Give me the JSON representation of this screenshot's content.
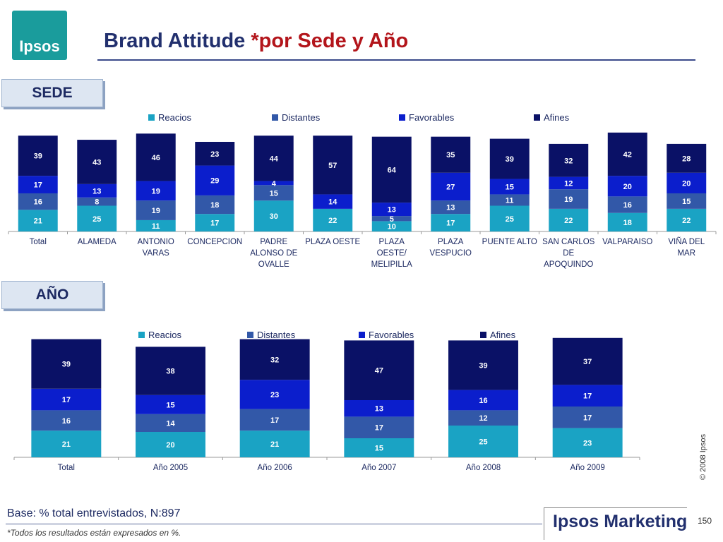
{
  "header": {
    "logo_text": "Ipsos",
    "title_main": "Brand Attitude ",
    "title_suffix": "*por Sede y Año"
  },
  "sections": {
    "sede_label": "SEDE",
    "anio_label": "AÑO"
  },
  "colors": {
    "Reacios": "#1aa3c4",
    "Distantes": "#3258a8",
    "Favorables": "#0b1ecc",
    "Afines": "#0a1166"
  },
  "chart_data": [
    {
      "type": "bar",
      "stacked": true,
      "categories": [
        [
          "Total"
        ],
        [
          "ALAMEDA"
        ],
        [
          "ANTONIO",
          "VARAS"
        ],
        [
          "CONCEPCION"
        ],
        [
          "PADRE",
          "ALONSO DE",
          "OVALLE"
        ],
        [
          "PLAZA OESTE"
        ],
        [
          "PLAZA",
          "OESTE/",
          "MELIPILLA"
        ],
        [
          "PLAZA",
          "VESPUCIO"
        ],
        [
          "PUENTE ALTO"
        ],
        [
          "SAN CARLOS",
          "DE",
          "APOQUINDO"
        ],
        [
          "VALPARAISO"
        ],
        [
          "VIÑA DEL",
          "MAR"
        ]
      ],
      "series": [
        {
          "name": "Reacios",
          "values": [
            21,
            25,
            11,
            17,
            30,
            22,
            10,
            17,
            25,
            22,
            18,
            22
          ]
        },
        {
          "name": "Distantes",
          "values": [
            16,
            8,
            19,
            18,
            15,
            0,
            5,
            13,
            11,
            19,
            16,
            15
          ]
        },
        {
          "name": "Favorables",
          "values": [
            17,
            13,
            19,
            29,
            4,
            14,
            13,
            27,
            15,
            12,
            20,
            20
          ]
        },
        {
          "name": "Afines",
          "values": [
            39,
            43,
            46,
            23,
            44,
            57,
            64,
            35,
            39,
            32,
            42,
            28
          ]
        }
      ],
      "legend": "top"
    },
    {
      "type": "bar",
      "stacked": true,
      "categories": [
        [
          "Total"
        ],
        [
          "Año 2005"
        ],
        [
          "Año 2006"
        ],
        [
          "Año 2007"
        ],
        [
          "Año 2008"
        ],
        [
          "Año 2009"
        ]
      ],
      "series": [
        {
          "name": "Reacios",
          "values": [
            21,
            20,
            21,
            15,
            25,
            23
          ]
        },
        {
          "name": "Distantes",
          "values": [
            16,
            14,
            17,
            17,
            12,
            17
          ]
        },
        {
          "name": "Favorables",
          "values": [
            17,
            15,
            23,
            13,
            16,
            17
          ]
        },
        {
          "name": "Afines",
          "values": [
            39,
            38,
            32,
            47,
            39,
            37
          ]
        }
      ],
      "legend": "top"
    }
  ],
  "footer": {
    "base": "Base: % total entrevistados, N:897",
    "note": "*Todos los resultados están expresados en %.",
    "copyright": "© 2008 Ipsos",
    "brand": "Ipsos Marketing",
    "page": "150"
  }
}
